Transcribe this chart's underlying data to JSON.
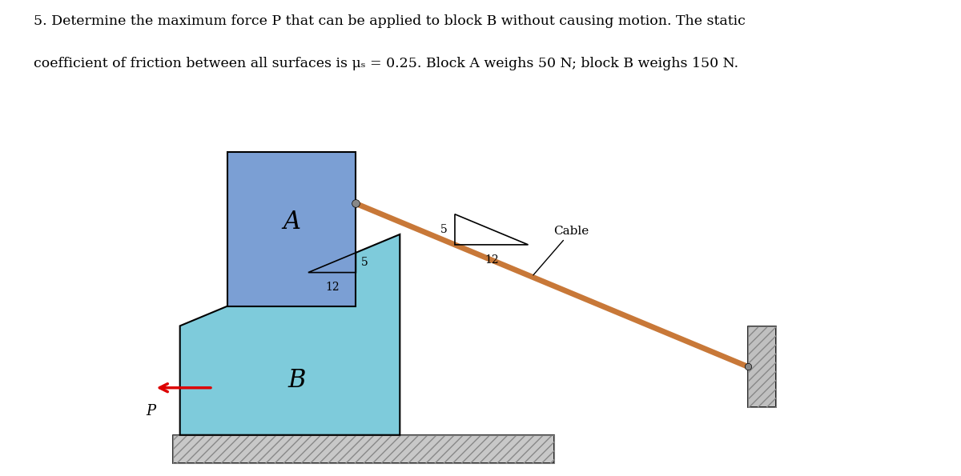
{
  "title_line1": "5. Determine the maximum force P that can be applied to block B without causing motion. The static",
  "title_line2": "coefficient of friction between all surfaces is μₛ = 0.25. Block A weighs 50 N; block B weighs 150 N.",
  "bg_color": "#ffffff",
  "block_A_color": "#7b9fd4",
  "block_B_color": "#7ecbdb",
  "ground_color": "#b0b0b0",
  "cable_color": "#c87838",
  "wall_color": "#b0b0b0",
  "arrow_color": "#dd0000",
  "label_A": "A",
  "label_B": "B",
  "label_P": "P",
  "label_cable": "Cable",
  "label_5a": "5",
  "label_12a": "12",
  "label_5b": "5",
  "label_12b": "12",
  "fig_width": 12.0,
  "fig_height": 5.95,
  "dpi": 100
}
